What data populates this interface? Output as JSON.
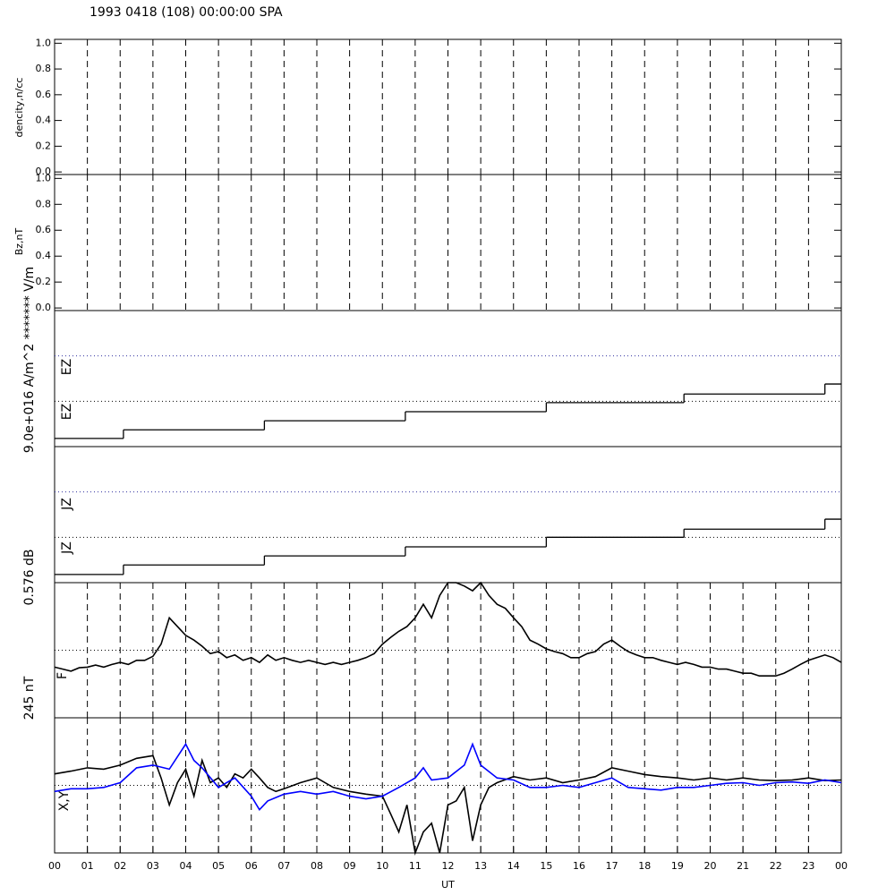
{
  "chart_data": [
    {
      "type": "line",
      "title": "1993 0418 (108) 00:00:00 SPA",
      "ylabel": "dencity,n/cc",
      "xlim": [
        0,
        24
      ],
      "ylim": [
        -0.02,
        1.03
      ],
      "yticks": [
        {
          "value": 0,
          "label": "0.0"
        },
        0.2,
        0.4,
        0.6,
        0.8,
        {
          "value": 1,
          "label": "1.0"
        }
      ],
      "grid": true,
      "series": []
    },
    {
      "type": "line",
      "ylabel": "Bz,nT",
      "xlim": [
        0,
        24
      ],
      "ylim": [
        -0.02,
        1.03
      ],
      "yticks": [
        {
          "value": 0,
          "label": "0.0"
        },
        0.2,
        0.4,
        0.6,
        0.8,
        {
          "value": 1,
          "label": "1.0"
        }
      ],
      "grid": true,
      "series": []
    },
    {
      "type": "step",
      "ylabel": "9.0e+016 A/m^2  ******* V/m",
      "labels": [
        "EZ",
        "EZ"
      ],
      "xlim": [
        0,
        24
      ],
      "ylim": [
        0,
        3
      ],
      "hlines": [
        2,
        1
      ],
      "hline_colors": [
        "#3030a0",
        "#000000"
      ],
      "grid": false,
      "series": [
        {
          "color": "#000000",
          "x": [
            0,
            2.1,
            6.4,
            10.7,
            15.0,
            19.2,
            23.5
          ],
          "values": [
            0.18,
            0.37,
            0.57,
            0.77,
            0.97,
            1.16,
            1.38
          ]
        }
      ]
    },
    {
      "type": "step",
      "labels": [
        "JZ",
        "JZ"
      ],
      "xlim": [
        0,
        24
      ],
      "ylim": [
        0,
        3
      ],
      "hlines": [
        2,
        1
      ],
      "hline_colors": [
        "#3030a0",
        "#000000"
      ],
      "grid": false,
      "series": [
        {
          "color": "#000000",
          "x": [
            0,
            2.1,
            6.4,
            10.7,
            15.0,
            19.2,
            23.5
          ],
          "values": [
            0.18,
            0.39,
            0.59,
            0.79,
            1.0,
            1.18,
            1.4
          ]
        }
      ]
    },
    {
      "type": "line",
      "ylabel": "0.576 dB",
      "labels": [
        "F"
      ],
      "xlim": [
        0,
        24
      ],
      "ylim": [
        0,
        2
      ],
      "hlines": [
        1
      ],
      "hline_colors": [
        "#000000"
      ],
      "grid": true,
      "series": [
        {
          "color": "#000000",
          "x": [
            0,
            0.25,
            0.5,
            0.75,
            1,
            1.25,
            1.5,
            1.75,
            2,
            2.25,
            2.5,
            2.75,
            3,
            3.25,
            3.5,
            3.75,
            4,
            4.25,
            4.5,
            4.75,
            5,
            5.25,
            5.5,
            5.75,
            6,
            6.25,
            6.5,
            6.75,
            7,
            7.25,
            7.5,
            7.75,
            8,
            8.25,
            8.5,
            8.75,
            9,
            9.25,
            9.5,
            9.75,
            10,
            10.25,
            10.5,
            10.75,
            11,
            11.25,
            11.5,
            11.75,
            12,
            12.25,
            12.5,
            12.75,
            13,
            13.25,
            13.5,
            13.75,
            14,
            14.25,
            14.5,
            14.75,
            15,
            15.25,
            15.5,
            15.75,
            16,
            16.25,
            16.5,
            16.75,
            17,
            17.25,
            17.5,
            17.75,
            18,
            18.25,
            18.5,
            18.75,
            19,
            19.25,
            19.5,
            19.75,
            20,
            20.25,
            20.5,
            20.75,
            21,
            21.25,
            21.5,
            21.75,
            22,
            22.25,
            22.5,
            22.75,
            23,
            23.25,
            23.5,
            23.75,
            24
          ],
          "values": [
            0.75,
            0.72,
            0.69,
            0.74,
            0.75,
            0.78,
            0.75,
            0.79,
            0.82,
            0.79,
            0.85,
            0.85,
            0.91,
            1.09,
            1.48,
            1.35,
            1.22,
            1.15,
            1.06,
            0.95,
            0.98,
            0.89,
            0.93,
            0.85,
            0.89,
            0.82,
            0.93,
            0.85,
            0.89,
            0.85,
            0.82,
            0.85,
            0.82,
            0.79,
            0.82,
            0.79,
            0.82,
            0.85,
            0.89,
            0.95,
            1.09,
            1.19,
            1.28,
            1.35,
            1.48,
            1.68,
            1.48,
            1.81,
            2.0,
            2.0,
            1.95,
            1.88,
            2.0,
            1.81,
            1.68,
            1.62,
            1.48,
            1.35,
            1.15,
            1.09,
            1.02,
            0.98,
            0.95,
            0.89,
            0.89,
            0.95,
            0.98,
            1.09,
            1.15,
            1.06,
            0.98,
            0.93,
            0.89,
            0.89,
            0.85,
            0.82,
            0.79,
            0.82,
            0.79,
            0.75,
            0.75,
            0.72,
            0.72,
            0.69,
            0.66,
            0.66,
            0.62,
            0.62,
            0.62,
            0.66,
            0.72,
            0.79,
            0.85,
            0.89,
            0.93,
            0.89,
            0.82
          ]
        }
      ]
    },
    {
      "type": "line",
      "ylabel": "245 nT",
      "labels": [
        "X,Y"
      ],
      "xlabel": "UT",
      "xlim": [
        0,
        24
      ],
      "ylim": [
        -1,
        1
      ],
      "hlines": [
        0
      ],
      "hline_colors": [
        "#000000"
      ],
      "grid": true,
      "xticks": [
        {
          "value": 0,
          "label": "00"
        },
        {
          "value": 1,
          "label": "01"
        },
        {
          "value": 2,
          "label": "02"
        },
        {
          "value": 3,
          "label": "03"
        },
        {
          "value": 4,
          "label": "04"
        },
        {
          "value": 5,
          "label": "05"
        },
        {
          "value": 6,
          "label": "06"
        },
        {
          "value": 7,
          "label": "07"
        },
        {
          "value": 8,
          "label": "08"
        },
        {
          "value": 9,
          "label": "09"
        },
        10,
        11,
        12,
        13,
        14,
        15,
        16,
        17,
        18,
        19,
        20,
        21,
        22,
        23,
        {
          "value": 24,
          "label": "00"
        }
      ],
      "series": [
        {
          "color": "#000000",
          "x": [
            0,
            0.5,
            1,
            1.5,
            2,
            2.5,
            3,
            3.25,
            3.5,
            3.75,
            4,
            4.25,
            4.5,
            4.75,
            5,
            5.25,
            5.5,
            5.75,
            6,
            6.25,
            6.5,
            6.75,
            7,
            7.5,
            8,
            8.5,
            9,
            9.5,
            10,
            10.25,
            10.5,
            10.75,
            11,
            11.25,
            11.5,
            11.75,
            12,
            12.25,
            12.5,
            12.75,
            13,
            13.25,
            13.5,
            14,
            14.5,
            15,
            15.5,
            16,
            16.5,
            17,
            17.5,
            18,
            18.5,
            19,
            19.5,
            20,
            20.5,
            21,
            21.5,
            22,
            22.5,
            23,
            23.5,
            24
          ],
          "values": [
            0.17,
            0.21,
            0.26,
            0.24,
            0.3,
            0.4,
            0.44,
            0.11,
            -0.29,
            0.04,
            0.24,
            -0.16,
            0.37,
            0.04,
            0.11,
            -0.03,
            0.17,
            0.11,
            0.24,
            0.11,
            -0.03,
            -0.09,
            -0.05,
            0.04,
            0.11,
            -0.03,
            -0.09,
            -0.13,
            -0.16,
            -0.42,
            -0.69,
            -0.29,
            -1,
            -0.69,
            -0.56,
            -1,
            -0.29,
            -0.23,
            -0.03,
            -0.82,
            -0.29,
            -0.03,
            0.04,
            0.13,
            0.08,
            0.11,
            0.04,
            0.08,
            0.13,
            0.26,
            0.21,
            0.16,
            0.13,
            0.11,
            0.08,
            0.11,
            0.08,
            0.11,
            0.08,
            0.07,
            0.08,
            0.11,
            0.07,
            0.08
          ]
        },
        {
          "color": "#0000ff",
          "x": [
            0,
            0.5,
            1,
            1.5,
            2,
            2.5,
            3,
            3.5,
            4,
            4.25,
            4.5,
            5,
            5.5,
            6,
            6.25,
            6.5,
            7,
            7.5,
            8,
            8.5,
            9,
            9.5,
            10,
            10.5,
            11,
            11.25,
            11.5,
            12,
            12.5,
            12.75,
            13,
            13.5,
            14,
            14.5,
            15,
            15.5,
            16,
            16.5,
            17,
            17.5,
            18,
            18.5,
            19,
            19.5,
            20,
            20.5,
            21,
            21.5,
            22,
            22.5,
            23,
            23.5,
            24
          ],
          "values": [
            -0.09,
            -0.05,
            -0.05,
            -0.03,
            0.04,
            0.26,
            0.3,
            0.24,
            0.61,
            0.37,
            0.26,
            -0.03,
            0.11,
            -0.16,
            -0.36,
            -0.23,
            -0.13,
            -0.09,
            -0.13,
            -0.09,
            -0.16,
            -0.2,
            -0.16,
            -0.03,
            0.11,
            0.26,
            0.08,
            0.11,
            0.3,
            0.61,
            0.3,
            0.11,
            0.08,
            -0.03,
            -0.03,
            0,
            -0.03,
            0.04,
            0.11,
            -0.03,
            -0.05,
            -0.07,
            -0.03,
            -0.03,
            0,
            0.03,
            0.04,
            0,
            0.04,
            0.05,
            0.03,
            0.08,
            0.04
          ]
        }
      ]
    }
  ]
}
